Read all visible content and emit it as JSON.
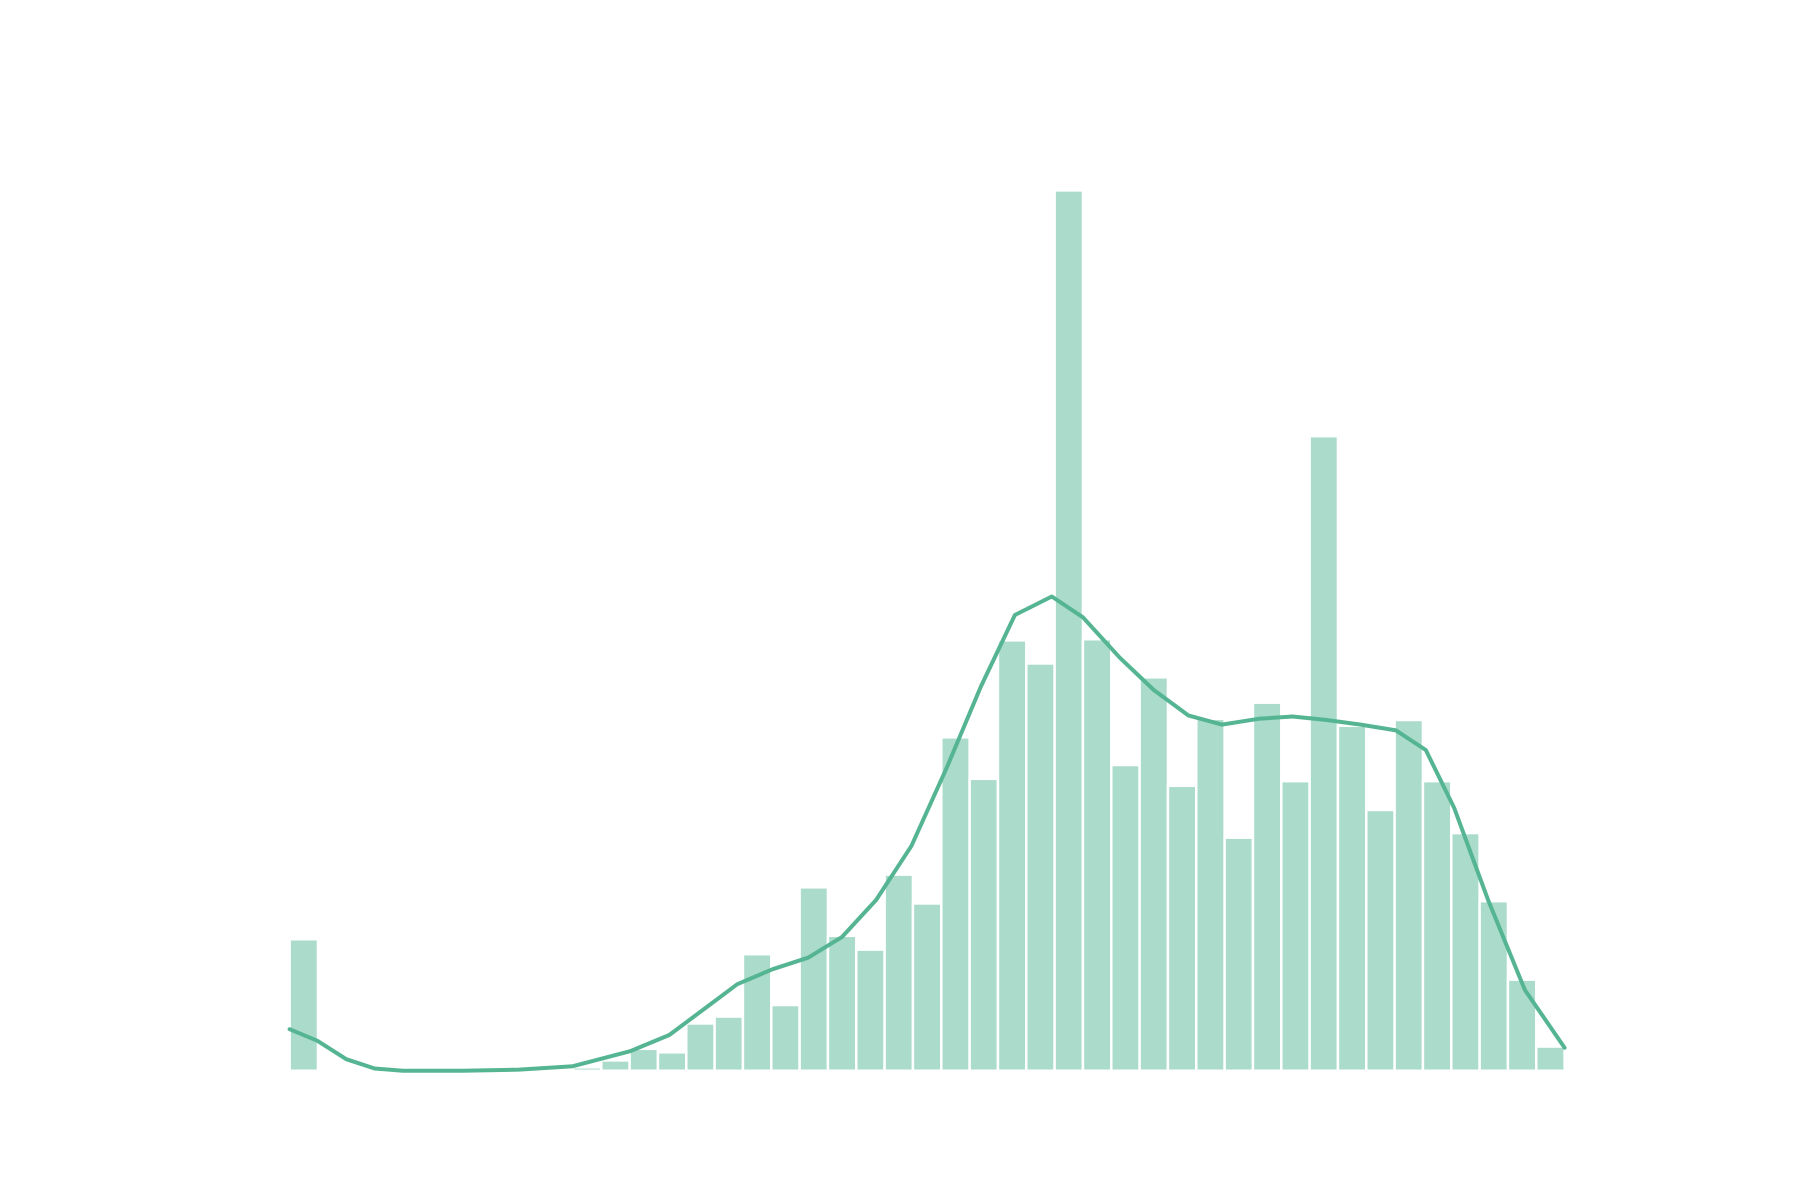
{
  "chart_data": {
    "type": "histogram",
    "bins": [
      0,
      1,
      2,
      3,
      4,
      5,
      6,
      7,
      8,
      9,
      10,
      11,
      12,
      13,
      14,
      15,
      16,
      17,
      18,
      19,
      20,
      21,
      22,
      23,
      24,
      25,
      26,
      27,
      28,
      29,
      30,
      31,
      32,
      33,
      34,
      35,
      36,
      37,
      38,
      39,
      40,
      41,
      42,
      43,
      44,
      45
    ],
    "values": [
      114,
      0,
      0,
      0,
      0,
      0,
      0,
      0,
      0,
      0,
      3,
      9,
      19,
      16,
      41,
      47,
      101,
      57,
      159,
      117,
      105,
      170,
      145,
      289,
      253,
      373,
      353,
      763,
      374,
      265,
      341,
      247,
      305,
      202,
      319,
      251,
      550,
      299,
      226,
      304,
      251,
      206,
      147,
      79,
      21
    ],
    "color": "#aadbcb",
    "kde": {
      "color": "#55b593",
      "x": [
        0,
        0.98,
        2,
        3,
        4,
        6.1,
        8.1,
        10,
        12.02,
        13.4,
        14.6,
        15.8,
        17.05,
        18.3,
        19.5,
        20.7,
        21.95,
        23.2,
        24.4,
        25.6,
        26.9,
        28.0,
        29.3,
        30.5,
        31.72,
        32.9,
        34.2,
        35.4,
        36.6,
        37.8,
        39.05,
        40.1,
        41.1,
        42.3,
        43.6,
        45
      ],
      "values": [
        36,
        26,
        10,
        2,
        0,
        0,
        1,
        4,
        17,
        31,
        53,
        75,
        88,
        98,
        116,
        148,
        195,
        263,
        333,
        395,
        411,
        393,
        358,
        330,
        308,
        300,
        305,
        307,
        304,
        300,
        295,
        278,
        228,
        148,
        70,
        20
      ]
    },
    "xlim": [
      0,
      45
    ],
    "ylim": [
      0,
      800
    ]
  }
}
